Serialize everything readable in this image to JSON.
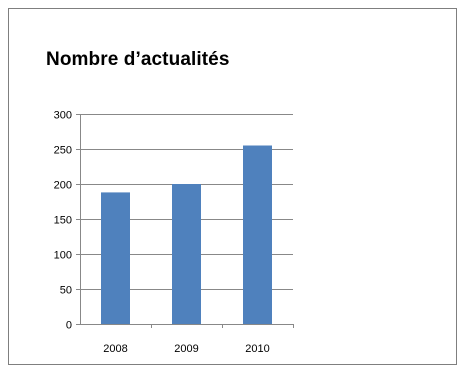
{
  "chart_data": {
    "type": "bar",
    "title": "Nombre d’actualités",
    "categories": [
      "2008",
      "2009",
      "2010"
    ],
    "values": [
      188,
      200,
      255
    ],
    "ylim": [
      0,
      300
    ],
    "yticks": [
      "0",
      "50",
      "100",
      "150",
      "200",
      "250",
      "300"
    ],
    "grid": true,
    "legend": "none",
    "bar_color": "#4f81bd",
    "grid_color": "#888888",
    "axis_color": "#888888"
  }
}
